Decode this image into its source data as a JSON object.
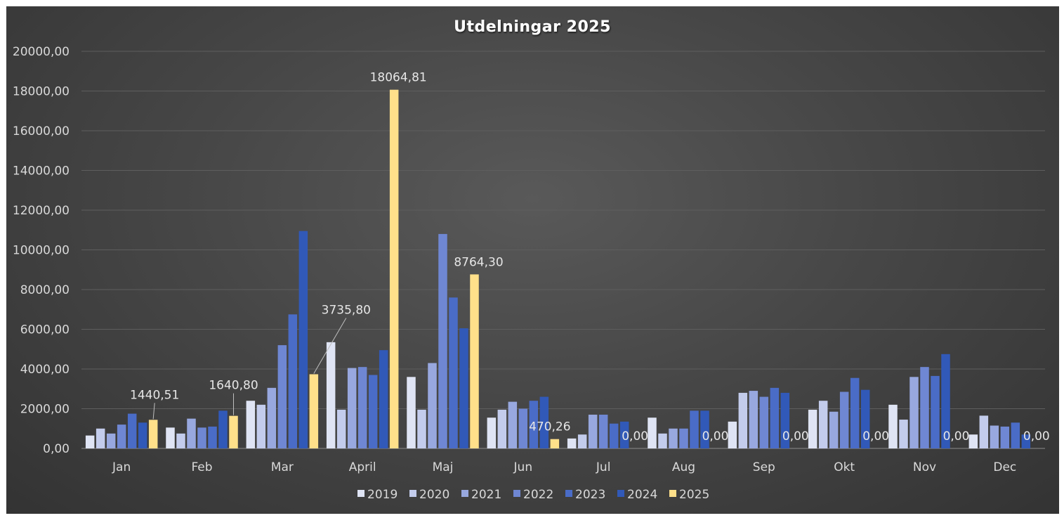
{
  "chart_data": {
    "type": "bar",
    "title": "Utdelningar 2025",
    "xlabel": "",
    "ylabel": "",
    "ylim": [
      0,
      20000
    ],
    "yticks": [
      0,
      2000,
      4000,
      6000,
      8000,
      10000,
      12000,
      14000,
      16000,
      18000,
      20000
    ],
    "ytick_labels": [
      "0,00",
      "2000,00",
      "4000,00",
      "6000,00",
      "8000,00",
      "10000,00",
      "12000,00",
      "14000,00",
      "16000,00",
      "18000,00",
      "20000,00"
    ],
    "grid": true,
    "legend_position": "bottom",
    "categories": [
      "Jan",
      "Feb",
      "Mar",
      "April",
      "Maj",
      "Jun",
      "Jul",
      "Aug",
      "Sep",
      "Okt",
      "Nov",
      "Dec"
    ],
    "series": [
      {
        "name": "2019",
        "color": "#dfe4f4",
        "values": [
          650,
          1050,
          2400,
          5350,
          3600,
          1550,
          500,
          1550,
          1350,
          1950,
          2200,
          700
        ]
      },
      {
        "name": "2020",
        "color": "#c3ccec",
        "values": [
          1000,
          750,
          2200,
          1950,
          1950,
          1950,
          700,
          750,
          2800,
          2400,
          1450,
          1650
        ]
      },
      {
        "name": "2021",
        "color": "#98a8df",
        "values": [
          750,
          1500,
          3050,
          4050,
          4300,
          2350,
          1700,
          1000,
          2900,
          1850,
          3600,
          1150
        ]
      },
      {
        "name": "2022",
        "color": "#6f87d3",
        "values": [
          1200,
          1050,
          5200,
          4100,
          10800,
          2000,
          1700,
          1000,
          2600,
          2850,
          4100,
          1100
        ]
      },
      {
        "name": "2023",
        "color": "#4a6cc7",
        "values": [
          1750,
          1100,
          6750,
          3700,
          7600,
          2400,
          1250,
          1900,
          3050,
          3550,
          3650,
          1300
        ]
      },
      {
        "name": "2024",
        "color": "#3159b8",
        "values": [
          1300,
          1900,
          10950,
          4950,
          6050,
          2600,
          1350,
          1900,
          2800,
          2950,
          4750,
          700
        ]
      },
      {
        "name": "2025",
        "color": "#ffe08a",
        "values": [
          1440.51,
          1640.8,
          3735.8,
          18064.81,
          8764.3,
          470.26,
          0,
          0,
          0,
          0,
          0,
          0
        ],
        "data_labels": [
          "1440,51",
          "1640,80",
          "3735,80",
          "18064,81",
          "8764,30",
          "470,26",
          "0,00",
          "0,00",
          "0,00",
          "0,00",
          "0,00",
          "0,00"
        ]
      }
    ]
  }
}
